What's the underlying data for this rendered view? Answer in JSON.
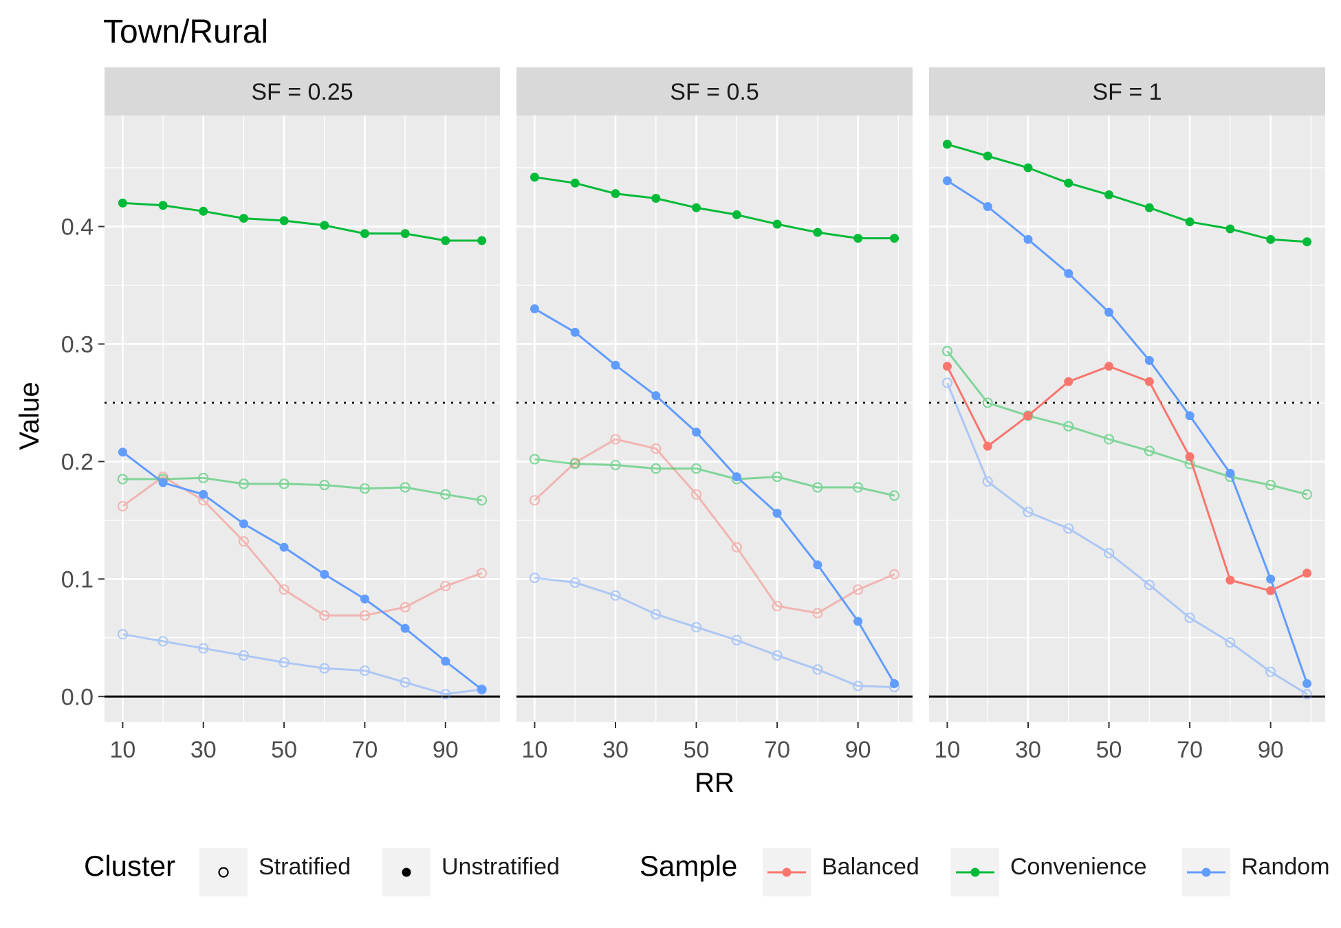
{
  "chart_data": {
    "type": "line",
    "title": "Town/Rural",
    "xlabel": "RR",
    "ylabel": "Value",
    "x": [
      10,
      20,
      30,
      40,
      50,
      60,
      70,
      80,
      90,
      99
    ],
    "xticks": [
      "10",
      "30",
      "50",
      "70",
      "90"
    ],
    "xtick_values": [
      10,
      30,
      50,
      70,
      90
    ],
    "yticks": [
      "0.0",
      "0.1",
      "0.2",
      "0.3",
      "0.4"
    ],
    "ytick_values": [
      0.0,
      0.1,
      0.2,
      0.3,
      0.4
    ],
    "xlim": [
      5.5,
      103.5
    ],
    "ylim": [
      -0.0215,
      0.4945
    ],
    "reference_lines": [
      {
        "y": 0.0,
        "style": "solid",
        "color": "#000000"
      },
      {
        "y": 0.25,
        "style": "dotted",
        "color": "#000000"
      }
    ],
    "grid": true,
    "panels": [
      {
        "label": "SF = 0.25",
        "series": [
          {
            "sample": "Convenience",
            "cluster": "Unstratified",
            "values": [
              0.42,
              0.418,
              0.413,
              0.407,
              0.405,
              0.401,
              0.394,
              0.394,
              0.388,
              0.388
            ]
          },
          {
            "sample": "Random",
            "cluster": "Unstratified",
            "values": [
              0.208,
              0.182,
              0.172,
              0.147,
              0.127,
              0.104,
              0.083,
              0.058,
              0.03,
              0.006
            ]
          },
          {
            "sample": "Balanced",
            "cluster": "Stratified",
            "values": [
              0.162,
              0.187,
              0.167,
              0.132,
              0.091,
              0.069,
              0.069,
              0.076,
              0.094,
              0.105
            ]
          },
          {
            "sample": "Convenience",
            "cluster": "Stratified",
            "values": [
              0.185,
              0.185,
              0.186,
              0.181,
              0.181,
              0.18,
              0.177,
              0.178,
              0.172,
              0.167
            ]
          },
          {
            "sample": "Random",
            "cluster": "Stratified",
            "values": [
              0.053,
              0.047,
              0.041,
              0.035,
              0.029,
              0.024,
              0.022,
              0.012,
              0.002,
              0.006
            ]
          }
        ]
      },
      {
        "label": "SF = 0.5",
        "series": [
          {
            "sample": "Convenience",
            "cluster": "Unstratified",
            "values": [
              0.442,
              0.437,
              0.428,
              0.424,
              0.416,
              0.41,
              0.402,
              0.395,
              0.39,
              0.39
            ]
          },
          {
            "sample": "Random",
            "cluster": "Unstratified",
            "values": [
              0.33,
              0.31,
              0.282,
              0.256,
              0.225,
              0.187,
              0.156,
              0.112,
              0.064,
              0.011
            ]
          },
          {
            "sample": "Balanced",
            "cluster": "Stratified",
            "values": [
              0.167,
              0.199,
              0.219,
              0.211,
              0.172,
              0.127,
              0.077,
              0.071,
              0.091,
              0.104
            ]
          },
          {
            "sample": "Convenience",
            "cluster": "Stratified",
            "values": [
              0.202,
              0.198,
              0.197,
              0.194,
              0.194,
              0.185,
              0.187,
              0.178,
              0.178,
              0.171
            ]
          },
          {
            "sample": "Random",
            "cluster": "Stratified",
            "values": [
              0.101,
              0.097,
              0.086,
              0.07,
              0.059,
              0.048,
              0.035,
              0.023,
              0.009,
              0.008
            ]
          }
        ]
      },
      {
        "label": "SF = 1",
        "series": [
          {
            "sample": "Convenience",
            "cluster": "Unstratified",
            "values": [
              0.47,
              0.46,
              0.45,
              0.437,
              0.427,
              0.416,
              0.404,
              0.398,
              0.389,
              0.387
            ]
          },
          {
            "sample": "Random",
            "cluster": "Unstratified",
            "values": [
              0.439,
              0.417,
              0.389,
              0.36,
              0.327,
              0.286,
              0.239,
              0.19,
              0.1,
              0.011
            ]
          },
          {
            "sample": "Balanced",
            "cluster": "Unstratified",
            "values": [
              0.281,
              0.213,
              0.239,
              0.268,
              0.281,
              0.268,
              0.204,
              0.099,
              0.09,
              0.105
            ]
          },
          {
            "sample": "Convenience",
            "cluster": "Stratified",
            "values": [
              0.294,
              0.25,
              0.239,
              0.23,
              0.219,
              0.209,
              0.198,
              0.187,
              0.18,
              0.172
            ]
          },
          {
            "sample": "Random",
            "cluster": "Stratified",
            "values": [
              0.267,
              0.183,
              0.157,
              0.143,
              0.122,
              0.095,
              0.067,
              0.046,
              0.021,
              0.002
            ]
          }
        ]
      }
    ],
    "legend_position": "bottom"
  },
  "legend": {
    "cluster_title": "Cluster",
    "cluster_items": [
      {
        "label": "Stratified",
        "filled": false
      },
      {
        "label": "Unstratified",
        "filled": true
      }
    ],
    "sample_title": "Sample",
    "sample_items": [
      {
        "label": "Balanced",
        "color": "#F8766D"
      },
      {
        "label": "Convenience",
        "color": "#00BA38"
      },
      {
        "label": "Random",
        "color": "#619CFF"
      }
    ]
  },
  "colors": {
    "Balanced": "#F8766D",
    "Convenience": "#00BA38",
    "Random": "#619CFF",
    "panel_bg": "#EBEBEB",
    "strip_bg": "#D9D9D9",
    "grid": "#FFFFFF"
  }
}
